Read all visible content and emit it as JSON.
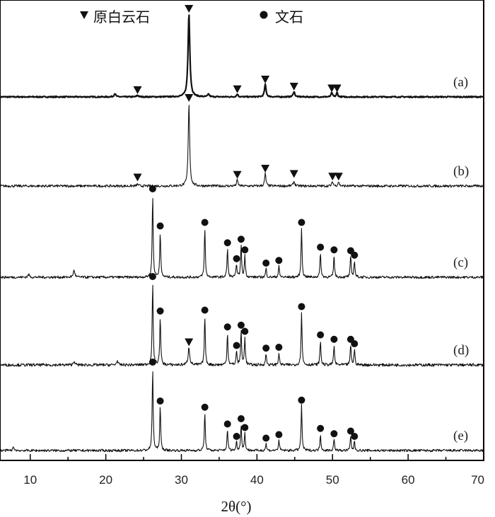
{
  "chart_data": {
    "type": "line",
    "title": "",
    "xlabel": "2θ(°)",
    "ylabel": "",
    "xlim": [
      6,
      70
    ],
    "x_ticks": [
      10,
      20,
      30,
      40,
      50,
      60,
      70
    ],
    "grid": false,
    "legend_position": "top",
    "legend": [
      {
        "marker": "triangle",
        "label": "原白云石"
      },
      {
        "marker": "circle",
        "label": "文石"
      }
    ],
    "series": [
      {
        "name": "(a)",
        "background": 0.04,
        "noise": 0.007,
        "stroke_width": 2.2,
        "peaks": [
          {
            "x": 21.2,
            "h": 0.04,
            "w": 0.25
          },
          {
            "x": 24.2,
            "h": 0.02,
            "w": 0.25
          },
          {
            "x": 31.0,
            "h": 0.95,
            "w": 0.28
          },
          {
            "x": 33.6,
            "h": 0.03,
            "w": 0.25
          },
          {
            "x": 37.4,
            "h": 0.03,
            "w": 0.25
          },
          {
            "x": 41.1,
            "h": 0.14,
            "w": 0.25
          },
          {
            "x": 44.9,
            "h": 0.06,
            "w": 0.25
          },
          {
            "x": 49.9,
            "h": 0.05,
            "w": 0.2
          },
          {
            "x": 50.6,
            "h": 0.05,
            "w": 0.2
          }
        ],
        "markers": [
          {
            "x": 24.2,
            "y": 0.12,
            "type": "triangle"
          },
          {
            "x": 31.0,
            "y": 1.04,
            "type": "triangle"
          },
          {
            "x": 37.4,
            "y": 0.13,
            "type": "triangle"
          },
          {
            "x": 41.1,
            "y": 0.24,
            "type": "triangle"
          },
          {
            "x": 44.9,
            "y": 0.16,
            "type": "triangle"
          },
          {
            "x": 49.9,
            "y": 0.14,
            "type": "triangle"
          },
          {
            "x": 50.6,
            "y": 0.14,
            "type": "triangle"
          }
        ]
      },
      {
        "name": "(b)",
        "background": 0.04,
        "noise": 0.014,
        "stroke_width": 1.1,
        "peaks": [
          {
            "x": 24.2,
            "h": 0.02,
            "w": 0.25
          },
          {
            "x": 31.0,
            "h": 0.95,
            "w": 0.22
          },
          {
            "x": 37.4,
            "h": 0.07,
            "w": 0.2
          },
          {
            "x": 41.1,
            "h": 0.14,
            "w": 0.2
          },
          {
            "x": 44.9,
            "h": 0.05,
            "w": 0.25
          },
          {
            "x": 50.0,
            "h": 0.05,
            "w": 0.2
          },
          {
            "x": 50.8,
            "h": 0.05,
            "w": 0.2
          }
        ],
        "markers": [
          {
            "x": 24.2,
            "y": 0.14,
            "type": "triangle"
          },
          {
            "x": 31.0,
            "y": 1.04,
            "type": "triangle"
          },
          {
            "x": 37.4,
            "y": 0.17,
            "type": "triangle"
          },
          {
            "x": 41.1,
            "y": 0.24,
            "type": "triangle"
          },
          {
            "x": 44.9,
            "y": 0.18,
            "type": "triangle"
          },
          {
            "x": 50.0,
            "y": 0.15,
            "type": "triangle"
          },
          {
            "x": 50.8,
            "y": 0.15,
            "type": "triangle"
          }
        ]
      },
      {
        "name": "(c)",
        "background": 0.04,
        "noise": 0.014,
        "stroke_width": 1.1,
        "peaks": [
          {
            "x": 9.8,
            "h": 0.03,
            "w": 0.25
          },
          {
            "x": 15.8,
            "h": 0.08,
            "w": 0.25
          },
          {
            "x": 26.2,
            "h": 0.95,
            "w": 0.15
          },
          {
            "x": 27.2,
            "h": 0.52,
            "w": 0.15
          },
          {
            "x": 33.1,
            "h": 0.56,
            "w": 0.15
          },
          {
            "x": 36.1,
            "h": 0.33,
            "w": 0.15
          },
          {
            "x": 37.3,
            "h": 0.15,
            "w": 0.15
          },
          {
            "x": 37.9,
            "h": 0.37,
            "w": 0.15
          },
          {
            "x": 38.4,
            "h": 0.25,
            "w": 0.15
          },
          {
            "x": 41.2,
            "h": 0.1,
            "w": 0.15
          },
          {
            "x": 42.9,
            "h": 0.13,
            "w": 0.15
          },
          {
            "x": 45.9,
            "h": 0.56,
            "w": 0.15
          },
          {
            "x": 48.4,
            "h": 0.28,
            "w": 0.15
          },
          {
            "x": 50.2,
            "h": 0.25,
            "w": 0.15
          },
          {
            "x": 52.4,
            "h": 0.24,
            "w": 0.15
          },
          {
            "x": 52.9,
            "h": 0.19,
            "w": 0.15
          }
        ],
        "markers": [
          {
            "x": 26.2,
            "y": 1.04,
            "type": "circle"
          },
          {
            "x": 27.2,
            "y": 0.62,
            "type": "circle"
          },
          {
            "x": 33.1,
            "y": 0.66,
            "type": "circle"
          },
          {
            "x": 36.1,
            "y": 0.43,
            "type": "circle"
          },
          {
            "x": 37.3,
            "y": 0.25,
            "type": "circle"
          },
          {
            "x": 37.9,
            "y": 0.47,
            "type": "circle"
          },
          {
            "x": 38.4,
            "y": 0.35,
            "type": "circle"
          },
          {
            "x": 41.2,
            "y": 0.2,
            "type": "circle"
          },
          {
            "x": 42.9,
            "y": 0.23,
            "type": "circle"
          },
          {
            "x": 45.9,
            "y": 0.66,
            "type": "circle"
          },
          {
            "x": 48.4,
            "y": 0.38,
            "type": "circle"
          },
          {
            "x": 50.2,
            "y": 0.35,
            "type": "circle"
          },
          {
            "x": 52.4,
            "y": 0.34,
            "type": "circle"
          },
          {
            "x": 52.9,
            "y": 0.29,
            "type": "circle"
          }
        ]
      },
      {
        "name": "(d)",
        "background": 0.04,
        "noise": 0.016,
        "stroke_width": 1.1,
        "peaks": [
          {
            "x": 15.8,
            "h": 0.05,
            "w": 0.2
          },
          {
            "x": 21.5,
            "h": 0.05,
            "w": 0.2
          },
          {
            "x": 26.2,
            "h": 0.95,
            "w": 0.15
          },
          {
            "x": 27.2,
            "h": 0.55,
            "w": 0.15
          },
          {
            "x": 31.0,
            "h": 0.2,
            "w": 0.25
          },
          {
            "x": 33.1,
            "h": 0.56,
            "w": 0.15
          },
          {
            "x": 36.1,
            "h": 0.37,
            "w": 0.15
          },
          {
            "x": 37.3,
            "h": 0.16,
            "w": 0.15
          },
          {
            "x": 37.9,
            "h": 0.39,
            "w": 0.15
          },
          {
            "x": 38.4,
            "h": 0.32,
            "w": 0.15
          },
          {
            "x": 41.2,
            "h": 0.13,
            "w": 0.15
          },
          {
            "x": 42.9,
            "h": 0.14,
            "w": 0.15
          },
          {
            "x": 45.9,
            "h": 0.6,
            "w": 0.15
          },
          {
            "x": 48.4,
            "h": 0.28,
            "w": 0.15
          },
          {
            "x": 50.2,
            "h": 0.23,
            "w": 0.15
          },
          {
            "x": 52.4,
            "h": 0.23,
            "w": 0.15
          },
          {
            "x": 52.9,
            "h": 0.18,
            "w": 0.15
          }
        ],
        "markers": [
          {
            "x": 26.2,
            "y": 1.04,
            "type": "circle"
          },
          {
            "x": 27.2,
            "y": 0.65,
            "type": "circle"
          },
          {
            "x": 31.0,
            "y": 0.3,
            "type": "triangle"
          },
          {
            "x": 33.1,
            "y": 0.66,
            "type": "circle"
          },
          {
            "x": 36.1,
            "y": 0.47,
            "type": "circle"
          },
          {
            "x": 37.3,
            "y": 0.26,
            "type": "circle"
          },
          {
            "x": 37.9,
            "y": 0.49,
            "type": "circle"
          },
          {
            "x": 38.4,
            "y": 0.42,
            "type": "circle"
          },
          {
            "x": 41.2,
            "y": 0.23,
            "type": "circle"
          },
          {
            "x": 42.9,
            "y": 0.24,
            "type": "circle"
          },
          {
            "x": 45.9,
            "y": 0.7,
            "type": "circle"
          },
          {
            "x": 48.4,
            "y": 0.38,
            "type": "circle"
          },
          {
            "x": 50.2,
            "y": 0.33,
            "type": "circle"
          },
          {
            "x": 52.4,
            "y": 0.33,
            "type": "circle"
          },
          {
            "x": 52.9,
            "y": 0.28,
            "type": "circle"
          }
        ]
      },
      {
        "name": "(e)",
        "background": 0.04,
        "noise": 0.014,
        "stroke_width": 1.1,
        "peaks": [
          {
            "x": 7.8,
            "h": 0.04,
            "w": 0.2
          },
          {
            "x": 26.2,
            "h": 0.95,
            "w": 0.15
          },
          {
            "x": 27.2,
            "h": 0.5,
            "w": 0.15
          },
          {
            "x": 33.1,
            "h": 0.43,
            "w": 0.15
          },
          {
            "x": 36.1,
            "h": 0.24,
            "w": 0.15
          },
          {
            "x": 37.3,
            "h": 0.1,
            "w": 0.15
          },
          {
            "x": 37.9,
            "h": 0.3,
            "w": 0.15
          },
          {
            "x": 38.4,
            "h": 0.2,
            "w": 0.15
          },
          {
            "x": 41.2,
            "h": 0.08,
            "w": 0.15
          },
          {
            "x": 42.9,
            "h": 0.12,
            "w": 0.15
          },
          {
            "x": 45.9,
            "h": 0.51,
            "w": 0.15
          },
          {
            "x": 48.4,
            "h": 0.19,
            "w": 0.15
          },
          {
            "x": 50.2,
            "h": 0.13,
            "w": 0.15
          },
          {
            "x": 52.4,
            "h": 0.16,
            "w": 0.15
          },
          {
            "x": 52.9,
            "h": 0.1,
            "w": 0.15
          }
        ],
        "markers": [
          {
            "x": 26.2,
            "y": 1.04,
            "type": "circle"
          },
          {
            "x": 27.2,
            "y": 0.6,
            "type": "circle"
          },
          {
            "x": 33.1,
            "y": 0.53,
            "type": "circle"
          },
          {
            "x": 36.1,
            "y": 0.34,
            "type": "circle"
          },
          {
            "x": 37.3,
            "y": 0.2,
            "type": "circle"
          },
          {
            "x": 37.9,
            "y": 0.4,
            "type": "circle"
          },
          {
            "x": 38.4,
            "y": 0.3,
            "type": "circle"
          },
          {
            "x": 41.2,
            "y": 0.18,
            "type": "circle"
          },
          {
            "x": 42.9,
            "y": 0.22,
            "type": "circle"
          },
          {
            "x": 45.9,
            "y": 0.61,
            "type": "circle"
          },
          {
            "x": 48.4,
            "y": 0.29,
            "type": "circle"
          },
          {
            "x": 50.2,
            "y": 0.23,
            "type": "circle"
          },
          {
            "x": 52.4,
            "y": 0.26,
            "type": "circle"
          },
          {
            "x": 52.9,
            "y": 0.2,
            "type": "circle"
          }
        ]
      }
    ]
  },
  "colors": {
    "line": "#111111",
    "axis": "#000000",
    "background": "#ffffff"
  }
}
